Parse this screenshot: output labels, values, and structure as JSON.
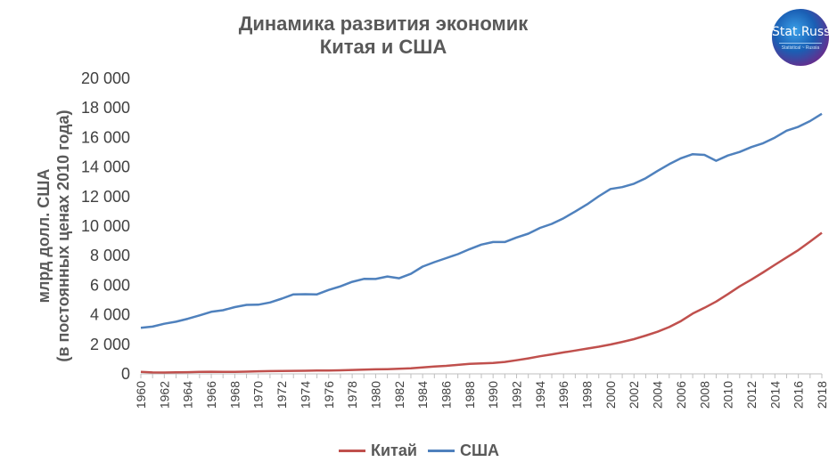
{
  "title_lines": [
    "Динамика развития экономик",
    "Китая и США"
  ],
  "logo": {
    "text": "Stat.Russ",
    "subtext": "Statistical ~ Russia"
  },
  "chart_data": {
    "type": "line",
    "title": "Динамика развития экономик Китая и США",
    "ylabel_lines": [
      "млрд долл. США",
      "(в постоянных ценах 2010 года)"
    ],
    "ylim": [
      0,
      20000
    ],
    "yticks": [
      0,
      2000,
      4000,
      6000,
      8000,
      10000,
      12000,
      14000,
      16000,
      18000,
      20000
    ],
    "ytick_labels": [
      "0",
      "2 000",
      "4 000",
      "6 000",
      "8 000",
      "10 000",
      "12 000",
      "14 000",
      "16 000",
      "18 000",
      "20 000"
    ],
    "xlim": [
      1960,
      2018
    ],
    "xtick_labels": [
      "1960",
      "1962",
      "1964",
      "1966",
      "1968",
      "1970",
      "1972",
      "1974",
      "1976",
      "1978",
      "1980",
      "1982",
      "1984",
      "1986",
      "1988",
      "1990",
      "1992",
      "1994",
      "1996",
      "1998",
      "2000",
      "2002",
      "2004",
      "2006",
      "2008",
      "2010",
      "2012",
      "2014",
      "2016",
      "2018"
    ],
    "grid": false,
    "legend_position": "bottom",
    "x": [
      1960,
      1961,
      1962,
      1963,
      1964,
      1965,
      1966,
      1967,
      1968,
      1969,
      1970,
      1971,
      1972,
      1973,
      1974,
      1975,
      1976,
      1977,
      1978,
      1979,
      1980,
      1981,
      1982,
      1983,
      1984,
      1985,
      1986,
      1987,
      1988,
      1989,
      1990,
      1991,
      1992,
      1993,
      1994,
      1995,
      1996,
      1997,
      1998,
      1999,
      2000,
      2001,
      2002,
      2003,
      2004,
      2005,
      2006,
      2007,
      2008,
      2009,
      2010,
      2011,
      2012,
      2013,
      2014,
      2015,
      2016,
      2017,
      2018
    ],
    "series": [
      {
        "name": "Китай",
        "color": "#c0504d",
        "values": [
          130,
          95,
          90,
          100,
          115,
          130,
          145,
          140,
          135,
          150,
          175,
          185,
          190,
          205,
          210,
          225,
          220,
          240,
          265,
          285,
          305,
          320,
          345,
          380,
          440,
          500,
          545,
          610,
          680,
          710,
          740,
          810,
          920,
          1050,
          1190,
          1320,
          1450,
          1580,
          1710,
          1840,
          1990,
          2160,
          2350,
          2590,
          2850,
          3170,
          3570,
          4080,
          4470,
          4890,
          5400,
          5920,
          6380,
          6870,
          7380,
          7880,
          8380,
          8950,
          9550
        ]
      },
      {
        "name": "США",
        "color": "#4f81bd",
        "values": [
          3120,
          3200,
          3390,
          3530,
          3730,
          3960,
          4200,
          4310,
          4520,
          4670,
          4680,
          4830,
          5090,
          5380,
          5390,
          5380,
          5680,
          5920,
          6230,
          6430,
          6420,
          6590,
          6470,
          6770,
          7260,
          7560,
          7830,
          8100,
          8440,
          8750,
          8920,
          8920,
          9230,
          9490,
          9880,
          10150,
          10530,
          10990,
          11470,
          12020,
          12510,
          12640,
          12870,
          13240,
          13730,
          14190,
          14590,
          14870,
          14820,
          14420,
          14780,
          15020,
          15350,
          15610,
          15990,
          16460,
          16720,
          17110,
          17600
        ]
      }
    ]
  }
}
